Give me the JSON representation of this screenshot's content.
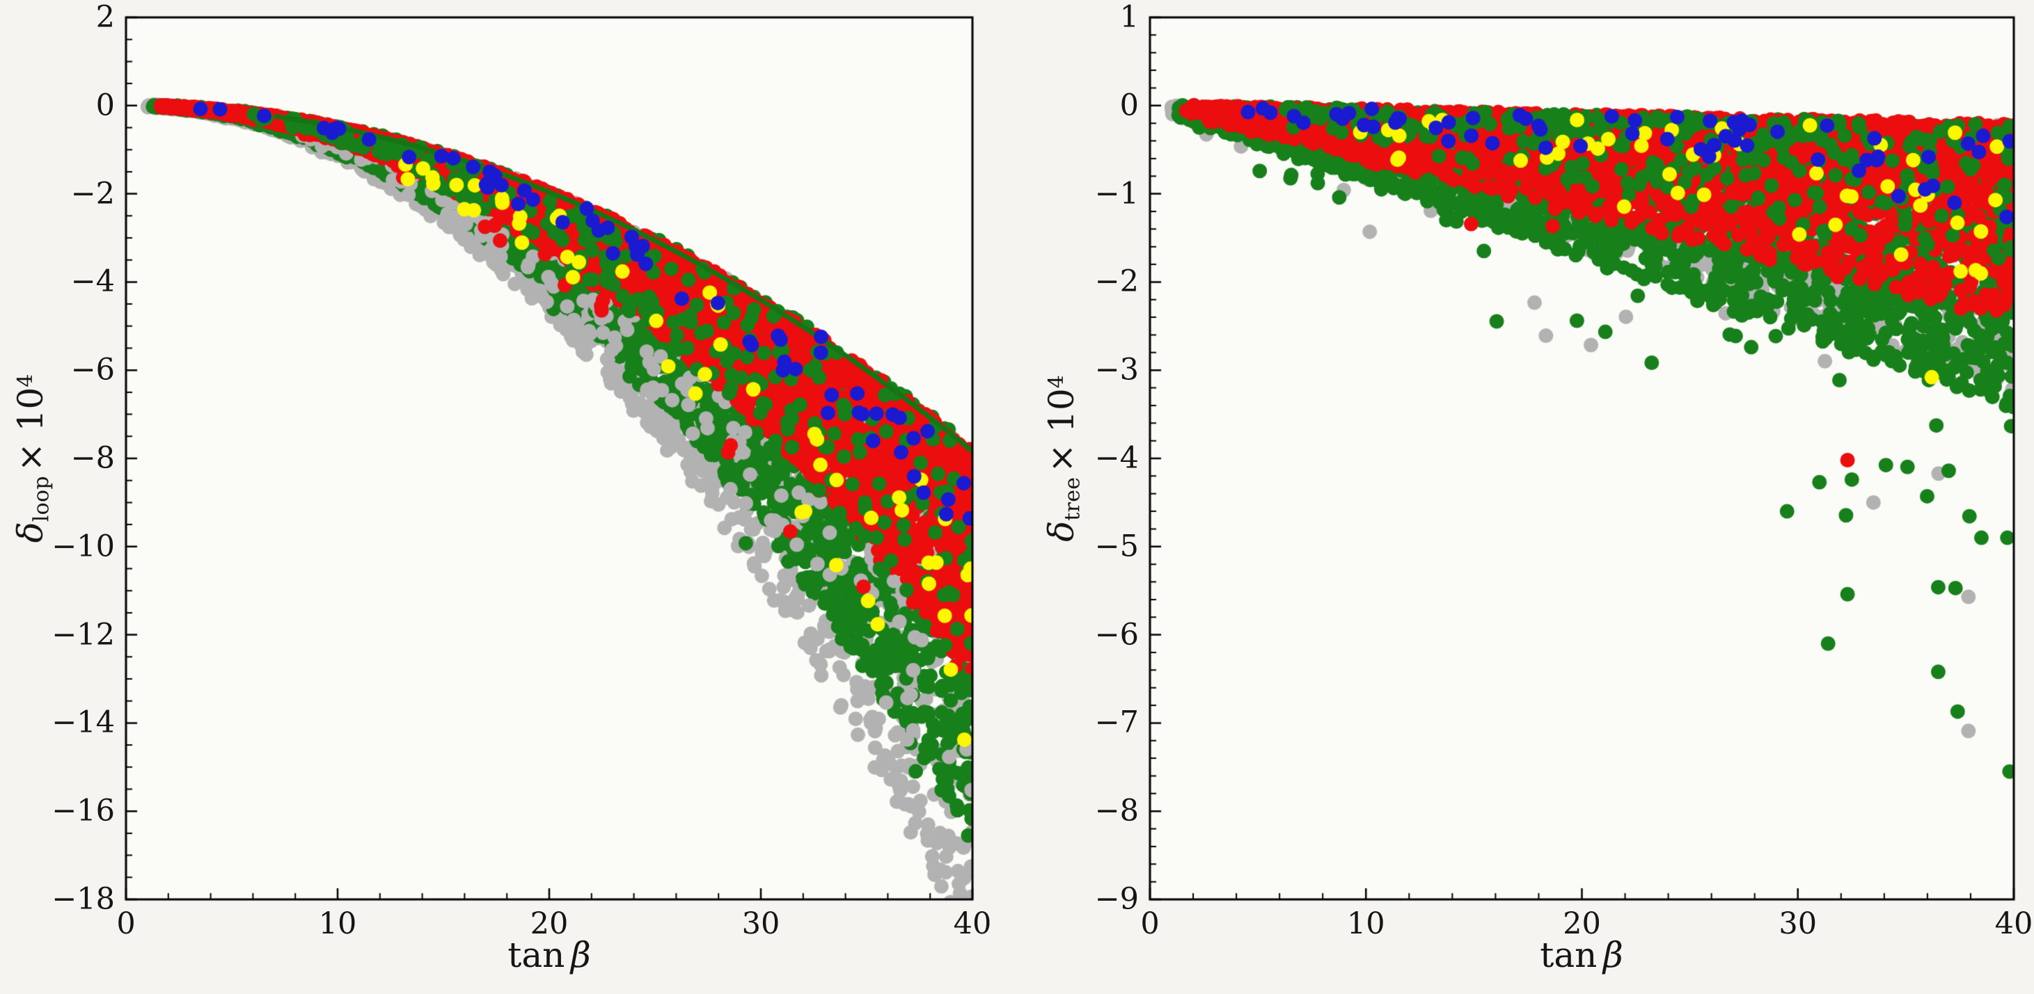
{
  "figure": {
    "background": "#f5f4f1",
    "plot_background": "#fbfbf8",
    "axis_color": "#000000",
    "tick_label_color": "#151515"
  },
  "chart_data": [
    {
      "type": "scatter",
      "panel": "left",
      "title": "",
      "xlabel": "tan β",
      "ylabel": "δ_loop × 10^4",
      "xlabel_parts": {
        "fn": "tan",
        "arg": "β"
      },
      "ylabel_parts": {
        "symbol": "δ",
        "subscript": "loop",
        "times": "× 10",
        "exponent": "4"
      },
      "xlim": [
        0,
        40
      ],
      "ylim": [
        -18,
        2
      ],
      "x_major_ticks": [
        0,
        10,
        20,
        30,
        40
      ],
      "x_tick_labels": [
        "0",
        "10",
        "20",
        "30",
        "40"
      ],
      "x_minor_step": 2,
      "y_major_ticks": [
        2,
        0,
        -2,
        -4,
        -6,
        -8,
        -10,
        -12,
        -14,
        -16,
        -18
      ],
      "y_tick_labels": [
        "2",
        "0",
        "−2",
        "−4",
        "−6",
        "−8",
        "−10",
        "−12",
        "−14",
        "−16",
        "−18"
      ],
      "y_minor_step": 0.5,
      "grid": false,
      "legend": "none",
      "marker_radius_px": 10.5,
      "envelope": {
        "formula": "delta = -a * tanbeta^2",
        "a": 0.0049,
        "t_start": 1,
        "rim_color": "#157515"
      },
      "seed": 20240601,
      "series": [
        {
          "name": "gray",
          "color": "#b2b2b2",
          "n": 2400,
          "t_min": 1.0,
          "t_bias": 1.0,
          "ratio_min": 1.0,
          "ratio_max": 2.45,
          "ratio_bias": 1.0,
          "outlier_frac": 0.0,
          "outlier_extra": 0.0
        },
        {
          "name": "green",
          "color": "#17801a",
          "n": 3000,
          "t_min": 1.2,
          "t_bias": 0.85,
          "ratio_min": 0.985,
          "ratio_max": 2.15,
          "ratio_bias": 1.0,
          "outlier_frac": 0.02,
          "outlier_extra": 0.25
        },
        {
          "name": "gray-mid",
          "color": "#b2b2b2",
          "n": 280,
          "t_min": 8.0,
          "t_bias": 1.0,
          "ratio_min": 1.2,
          "ratio_max": 2.3,
          "ratio_bias": 1.0,
          "outlier_frac": 0.0,
          "outlier_extra": 0.0
        },
        {
          "name": "red",
          "color": "#ec0e0e",
          "n": 3400,
          "t_min": 1.6,
          "t_bias": 0.8,
          "ratio_min": 1.005,
          "ratio_max": 1.65,
          "ratio_bias": 1.25,
          "outlier_frac": 0.015,
          "outlier_extra": 0.55
        },
        {
          "name": "green-overlay",
          "color": "#17801a",
          "n": 260,
          "t_min": 6.0,
          "t_bias": 0.85,
          "ratio_min": 1.0,
          "ratio_max": 1.7,
          "ratio_bias": 1.0,
          "outlier_frac": 0.0,
          "outlier_extra": 0.0
        },
        {
          "name": "yellow",
          "color": "#fdf800",
          "n": 52,
          "t_min": 12.0,
          "t_bias": 0.9,
          "ratio_min": 1.08,
          "ratio_max": 1.95,
          "ratio_bias": 1.0,
          "outlier_frac": 0.0,
          "outlier_extra": 0.0
        },
        {
          "name": "blue",
          "color": "#1a1ad0",
          "n": 62,
          "t_min": 2.5,
          "t_bias": 0.95,
          "ratio_min": 1.0,
          "ratio_max": 1.32,
          "ratio_bias": 1.1,
          "outlier_frac": 0.0,
          "outlier_extra": 0.0
        }
      ],
      "outlier_points": []
    },
    {
      "type": "scatter",
      "panel": "right",
      "title": "",
      "xlabel": "tan β",
      "ylabel": "δ_tree × 10^4",
      "xlabel_parts": {
        "fn": "tan",
        "arg": "β"
      },
      "ylabel_parts": {
        "symbol": "δ",
        "subscript": "tree",
        "times": "× 10",
        "exponent": "4"
      },
      "xlim": [
        0,
        40
      ],
      "ylim": [
        -9,
        1
      ],
      "x_major_ticks": [
        0,
        10,
        20,
        30,
        40
      ],
      "x_tick_labels": [
        "0",
        "10",
        "20",
        "30",
        "40"
      ],
      "x_minor_step": 2,
      "y_major_ticks": [
        1,
        0,
        -1,
        -2,
        -3,
        -4,
        -5,
        -6,
        -7,
        -8,
        -9
      ],
      "y_tick_labels": [
        "1",
        "0",
        "−1",
        "−2",
        "−3",
        "−4",
        "−5",
        "−6",
        "−7",
        "−8",
        "−9"
      ],
      "y_minor_step": 0.2,
      "grid": false,
      "legend": "none",
      "marker_radius_px": 10.5,
      "top_line": {
        "formula": "delta = -b * tanbeta",
        "b": 0.0062,
        "t_start": 1
      },
      "depth_scale": "linear in tanbeta: d = tanbeta/40",
      "seed": 770311,
      "series": [
        {
          "name": "gray",
          "color": "#b2b2b2",
          "n": 1500,
          "t_min": 1.0,
          "t_bias": 1.0,
          "depth_max": 3.0,
          "depth_bias": 1.0,
          "outlier_frac": 0.025,
          "outlier_mult_max": 2.2
        },
        {
          "name": "green",
          "color": "#17801a",
          "n": 2800,
          "t_min": 1.3,
          "t_bias": 0.85,
          "depth_max": 3.2,
          "depth_bias": 1.15,
          "outlier_frac": 0.03,
          "outlier_mult_max": 1.9
        },
        {
          "name": "red",
          "color": "#ec0e0e",
          "n": 2600,
          "t_min": 1.6,
          "t_bias": 0.8,
          "depth_max": 2.2,
          "depth_bias": 2.2,
          "outlier_frac": 0.01,
          "outlier_mult_max": 1.7
        },
        {
          "name": "green-overlay",
          "color": "#17801a",
          "n": 300,
          "t_min": 6.0,
          "t_bias": 0.85,
          "depth_max": 1.6,
          "depth_bias": 2.0,
          "outlier_frac": 0.0,
          "outlier_mult_max": 1.0
        },
        {
          "name": "yellow",
          "color": "#fdf800",
          "n": 48,
          "t_min": 8.0,
          "t_bias": 0.9,
          "depth_max": 2.0,
          "depth_bias": 1.1,
          "outlier_frac": 0.0,
          "outlier_mult_max": 1.0
        },
        {
          "name": "blue",
          "color": "#1a1ad0",
          "n": 60,
          "t_min": 4.0,
          "t_bias": 0.95,
          "depth_max": 1.0,
          "depth_bias": 1.4,
          "outlier_frac": 0.0,
          "outlier_mult_max": 1.0
        }
      ],
      "outlier_points": [
        {
          "series": "green",
          "t": 36.5,
          "y": -6.42
        },
        {
          "series": "green",
          "t": 37.4,
          "y": -6.87
        },
        {
          "series": "green",
          "t": 39.8,
          "y": -7.55
        },
        {
          "series": "green",
          "t": 31.4,
          "y": -6.1
        },
        {
          "series": "green",
          "t": 32.3,
          "y": -5.54
        },
        {
          "series": "green",
          "t": 31.0,
          "y": -4.27
        },
        {
          "series": "green",
          "t": 32.5,
          "y": -4.24
        },
        {
          "series": "green",
          "t": 36.5,
          "y": -5.46
        },
        {
          "series": "green",
          "t": 37.3,
          "y": -5.47
        },
        {
          "series": "green",
          "t": 38.5,
          "y": -4.9
        },
        {
          "series": "green",
          "t": 39.7,
          "y": -4.9
        },
        {
          "series": "green",
          "t": 29.5,
          "y": -4.6
        },
        {
          "series": "gray",
          "t": 37.9,
          "y": -7.09
        },
        {
          "series": "gray",
          "t": 37.9,
          "y": -5.57
        },
        {
          "series": "gray",
          "t": 33.5,
          "y": -4.5
        },
        {
          "series": "red",
          "t": 32.3,
          "y": -4.02
        },
        {
          "series": "yellow",
          "t": 36.2,
          "y": -3.08
        }
      ]
    }
  ]
}
